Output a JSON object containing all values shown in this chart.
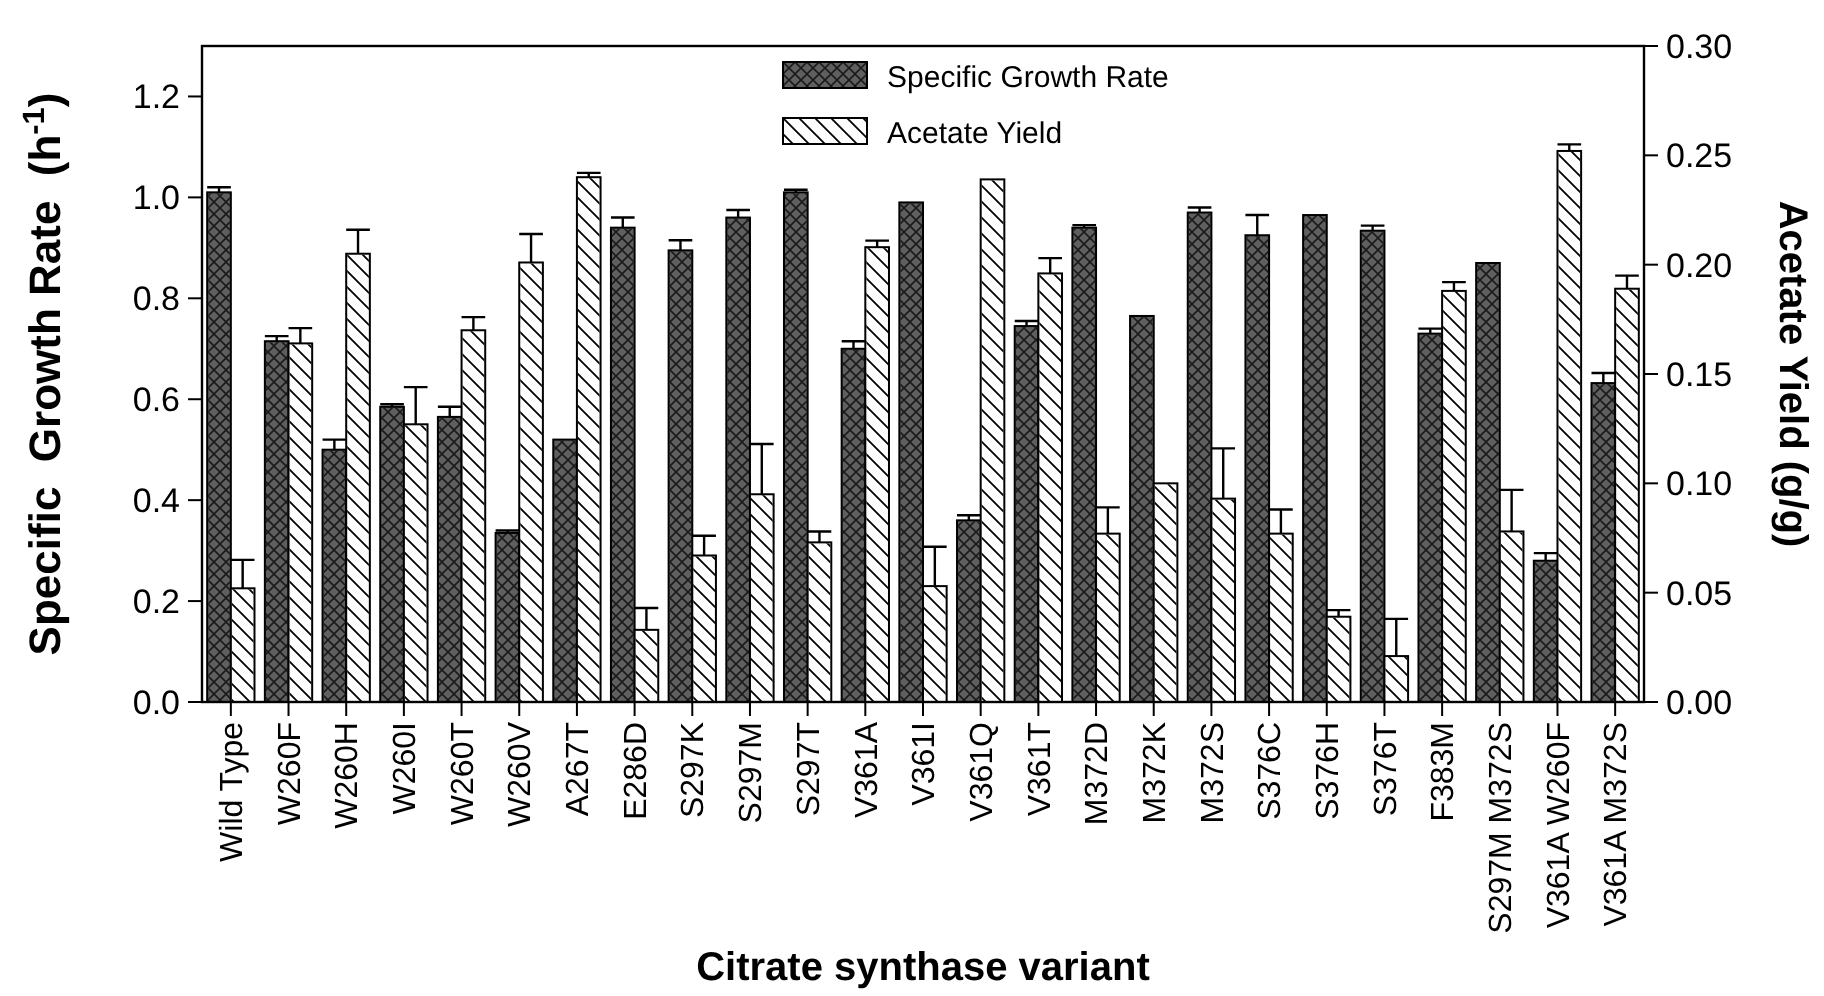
{
  "chart_data": {
    "type": "bar",
    "xlabel": "Citrate synthase variant",
    "ylabel": "Specific  Growth Rate  (h$^{-1}$)",
    "y2label": "Acetate Yield (g/g)",
    "categories": [
      "Wild Type",
      "W260F",
      "W260H",
      "W260I",
      "W260T",
      "W260V",
      "A267T",
      "E286D",
      "S297K",
      "S297M",
      "S297T",
      "V361A",
      "V361I",
      "V361Q",
      "V361T",
      "M372D",
      "M372K",
      "M372S",
      "S376C",
      "S376H",
      "S376T",
      "F383M",
      "S297M M372S",
      "V361A W260F",
      "V361A M372S"
    ],
    "series": [
      {
        "name": "Specific Growth Rate",
        "color": "#5f5f5f",
        "values": [
          1.01,
          0.715,
          0.5,
          0.585,
          0.565,
          0.335,
          0.52,
          0.94,
          0.895,
          0.96,
          1.01,
          0.7,
          0.99,
          0.36,
          0.745,
          0.94,
          0.765,
          0.97,
          0.925,
          0.965,
          0.934,
          0.73,
          0.87,
          0.28,
          0.632
        ],
        "errors": [
          0.01,
          0.01,
          0.02,
          0.005,
          0.02,
          0.005,
          null,
          0.02,
          0.02,
          0.015,
          0.005,
          0.015,
          null,
          0.01,
          0.01,
          0.005,
          null,
          0.01,
          0.04,
          null,
          0.01,
          0.01,
          null,
          0.015,
          0.02
        ]
      },
      {
        "name": "Acetate Yield",
        "color": "#ffffff",
        "axis": "y2",
        "values": [
          0.052,
          0.164,
          0.205,
          0.127,
          0.17,
          0.201,
          0.24,
          0.033,
          0.067,
          0.095,
          0.073,
          0.208,
          0.053,
          0.239,
          0.196,
          0.077,
          0.1,
          0.093,
          0.077,
          0.039,
          0.021,
          0.188,
          0.078,
          0.252,
          0.189
        ],
        "errors": [
          0.013,
          0.007,
          0.011,
          0.017,
          0.006,
          0.013,
          0.002,
          0.01,
          0.009,
          0.023,
          0.005,
          0.003,
          0.018,
          null,
          0.007,
          0.012,
          null,
          0.023,
          0.011,
          0.003,
          0.017,
          0.004,
          0.019,
          0.003,
          0.006
        ]
      }
    ],
    "ylim": [
      0,
      1.3
    ],
    "yticks": [
      {
        "value": 0,
        "label": "0.0"
      },
      0.2,
      0.4,
      0.6,
      0.8,
      {
        "value": 1,
        "label": "1.0"
      },
      1.2
    ],
    "y2lim": [
      0,
      0.3
    ],
    "y2ticks": [
      {
        "value": 0,
        "label": "0.00"
      },
      0.05,
      {
        "value": 0.1,
        "label": "0.10"
      },
      0.15,
      {
        "value": 0.2,
        "label": "0.20"
      },
      0.25,
      {
        "value": 0.3,
        "label": "0.30"
      }
    ],
    "legend": "top",
    "grid": false
  }
}
